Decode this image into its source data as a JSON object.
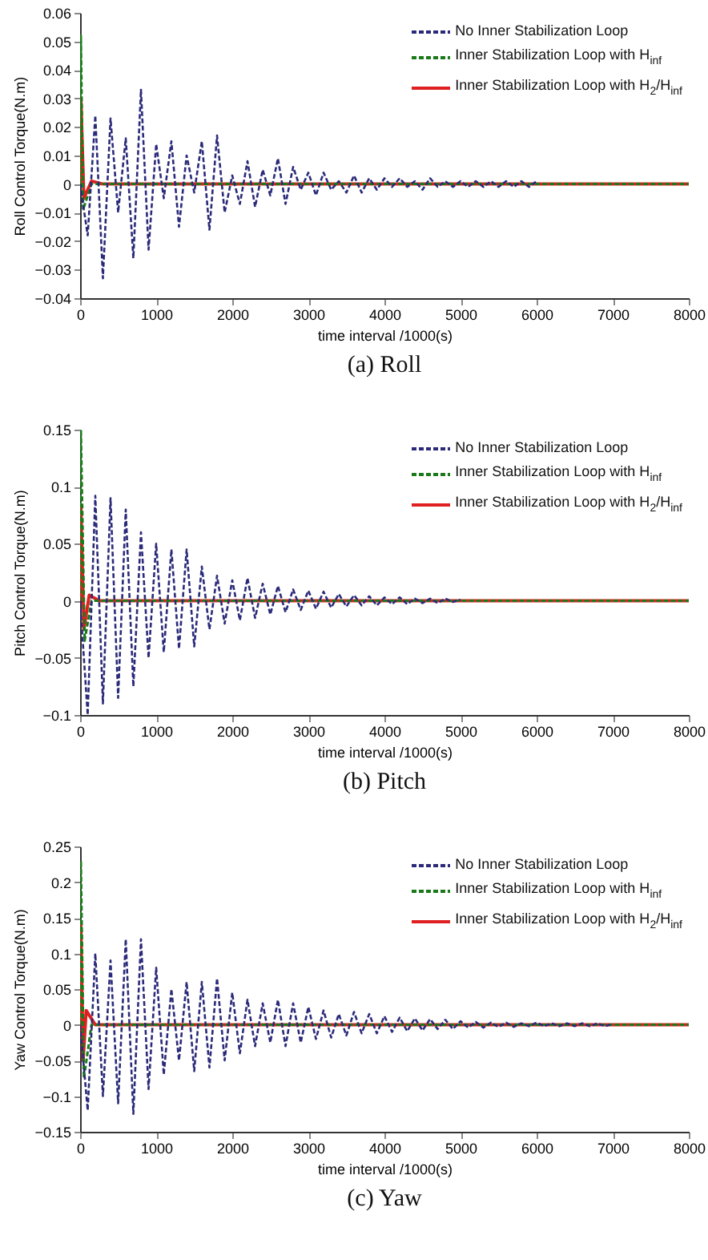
{
  "chart_data": [
    {
      "type": "line",
      "title": "(a) Roll",
      "xlabel": "time interval /1000(s)",
      "ylabel": "Roll Control Torque(N.m)",
      "xlim": [
        0,
        8000
      ],
      "xticks": [
        0,
        1000,
        2000,
        3000,
        4000,
        5000,
        6000,
        7000,
        8000
      ],
      "ylim": [
        -0.04,
        0.06
      ],
      "yticks": [
        -0.04,
        -0.03,
        -0.02,
        -0.01,
        0,
        0.01,
        0.02,
        0.03,
        0.04,
        0.05,
        0.06
      ],
      "legend": "top right",
      "series": [
        {
          "name": "No Inner Stabilization Loop",
          "color": "#2b2a7a",
          "line_style": "dashed",
          "x": [
            0,
            100,
            200,
            300,
            400,
            500,
            600,
            700,
            800,
            900,
            1000,
            1100,
            1200,
            1300,
            1400,
            1500,
            1600,
            1700,
            1800,
            1900,
            2000,
            2100,
            2200,
            2300,
            2400,
            2500,
            2600,
            2700,
            2800,
            2900,
            3000,
            3100,
            3200,
            3300,
            3400,
            3500,
            3600,
            3700,
            3800,
            3900,
            4000,
            4100,
            4200,
            4300,
            4400,
            4500,
            4600,
            4700,
            4800,
            4900,
            5000,
            5100,
            5200,
            5300,
            5400,
            5500,
            5600,
            5700,
            5800,
            5900,
            6000
          ],
          "values": [
            0,
            -0.018,
            0.024,
            -0.033,
            0.023,
            -0.01,
            0.016,
            -0.026,
            0.033,
            -0.023,
            0.014,
            -0.005,
            0.015,
            -0.015,
            0.01,
            -0.003,
            0.015,
            -0.016,
            0.017,
            -0.01,
            0.003,
            -0.007,
            0.008,
            -0.008,
            0.005,
            -0.004,
            0.009,
            -0.007,
            0.006,
            -0.002,
            0.004,
            -0.004,
            0.004,
            -0.002,
            0.001,
            -0.003,
            0.003,
            -0.003,
            0.002,
            -0.002,
            0.002,
            -0.001,
            0.002,
            -0.001,
            0.001,
            -0.002,
            0.002,
            -0.001,
            0.001,
            -0.001,
            0.001,
            -0.001,
            0.001,
            -0.001,
            0.001,
            -0.001,
            0.001,
            -0.001,
            0.001,
            -0.001,
            0.001
          ]
        },
        {
          "name": "Inner Stabilization Loop with H$_{inf}$",
          "color": "#1a7a1a",
          "line_style": "dashed",
          "x": [
            0,
            10,
            40,
            150,
            8000
          ],
          "values": [
            0,
            0.052,
            -0.009,
            0,
            0
          ]
        },
        {
          "name": "Inner Stabilization Loop with H$_{2}$/H$_{inf}$",
          "color": "#e02020",
          "line_style": "solid",
          "x": [
            0,
            10,
            50,
            150,
            300,
            8000
          ],
          "values": [
            0,
            0.03,
            -0.005,
            0.001,
            0,
            0
          ]
        }
      ]
    },
    {
      "type": "line",
      "title": "(b) Pitch",
      "xlabel": "time interval /1000(s)",
      "ylabel": "Pitch Control Torque(N.m)",
      "xlim": [
        0,
        8000
      ],
      "xticks": [
        0,
        1000,
        2000,
        3000,
        4000,
        5000,
        6000,
        7000,
        8000
      ],
      "ylim": [
        -0.1,
        0.15
      ],
      "yticks": [
        -0.1,
        -0.05,
        0,
        0.05,
        0.1,
        0.15
      ],
      "legend": "top right",
      "series": [
        {
          "name": "No Inner Stabilization Loop",
          "color": "#2b2a7a",
          "line_style": "dashed",
          "x": [
            0,
            100,
            200,
            300,
            400,
            500,
            600,
            700,
            800,
            900,
            1000,
            1100,
            1200,
            1300,
            1400,
            1500,
            1600,
            1700,
            1800,
            1900,
            2000,
            2100,
            2200,
            2300,
            2400,
            2500,
            2600,
            2700,
            2800,
            2900,
            3000,
            3100,
            3200,
            3300,
            3400,
            3500,
            3600,
            3700,
            3800,
            3900,
            4000,
            4100,
            4200,
            4300,
            4400,
            4500,
            4600,
            4700,
            4800,
            4900,
            5000
          ],
          "values": [
            0,
            -0.1,
            0.092,
            -0.09,
            0.09,
            -0.085,
            0.08,
            -0.075,
            0.06,
            -0.05,
            0.05,
            -0.045,
            0.045,
            -0.042,
            0.045,
            -0.04,
            0.03,
            -0.025,
            0.022,
            -0.02,
            0.018,
            -0.017,
            0.02,
            -0.015,
            0.015,
            -0.012,
            0.013,
            -0.01,
            0.01,
            -0.008,
            0.009,
            -0.007,
            0.008,
            -0.006,
            0.006,
            -0.005,
            0.005,
            -0.004,
            0.004,
            -0.004,
            0.003,
            -0.003,
            0.003,
            -0.003,
            0.002,
            -0.002,
            0.002,
            -0.002,
            0.002,
            -0.001,
            0.001
          ]
        },
        {
          "name": "Inner Stabilization Loop with H$_{inf}$",
          "color": "#1a7a1a",
          "line_style": "dashed",
          "x": [
            0,
            10,
            60,
            150,
            8000
          ],
          "values": [
            0,
            0.15,
            -0.035,
            0,
            0
          ]
        },
        {
          "name": "Inner Stabilization Loop with H$_{2}$/H$_{inf}$",
          "color": "#e02020",
          "line_style": "solid",
          "x": [
            0,
            10,
            50,
            120,
            250,
            8000
          ],
          "values": [
            0,
            0.083,
            -0.025,
            0.005,
            0,
            0
          ]
        }
      ]
    },
    {
      "type": "line",
      "title": "(c) Yaw",
      "xlabel": "time interval /1000(s)",
      "ylabel": "Yaw Control Torque(N.m)",
      "xlim": [
        0,
        8000
      ],
      "xticks": [
        0,
        1000,
        2000,
        3000,
        4000,
        5000,
        6000,
        7000,
        8000
      ],
      "ylim": [
        -0.15,
        0.25
      ],
      "yticks": [
        -0.15,
        -0.1,
        -0.05,
        0,
        0.05,
        0.1,
        0.15,
        0.2,
        0.25
      ],
      "legend": "top right",
      "series": [
        {
          "name": "No Inner Stabilization Loop",
          "color": "#2b2a7a",
          "line_style": "dashed",
          "x": [
            0,
            100,
            200,
            300,
            400,
            500,
            600,
            700,
            800,
            900,
            1000,
            1100,
            1200,
            1300,
            1400,
            1500,
            1600,
            1700,
            1800,
            1900,
            2000,
            2100,
            2200,
            2300,
            2400,
            2500,
            2600,
            2700,
            2800,
            2900,
            3000,
            3100,
            3200,
            3300,
            3400,
            3500,
            3600,
            3700,
            3800,
            3900,
            4000,
            4100,
            4200,
            4300,
            4400,
            4500,
            4600,
            4700,
            4800,
            4900,
            5000,
            5100,
            5200,
            5300,
            5400,
            5500,
            5600,
            5700,
            5800,
            5900,
            6000,
            6100,
            6200,
            6300,
            6400,
            6500,
            6600,
            6700,
            6800,
            6900,
            7000
          ],
          "values": [
            0,
            -0.12,
            0.1,
            -0.1,
            0.09,
            -0.11,
            0.12,
            -0.125,
            0.12,
            -0.09,
            0.08,
            -0.07,
            0.05,
            -0.05,
            0.06,
            -0.065,
            0.06,
            -0.06,
            0.065,
            -0.05,
            0.045,
            -0.04,
            0.035,
            -0.03,
            0.03,
            -0.025,
            0.035,
            -0.03,
            0.03,
            -0.025,
            0.025,
            -0.02,
            0.02,
            -0.018,
            0.015,
            -0.015,
            0.018,
            -0.012,
            0.015,
            -0.012,
            0.012,
            -0.01,
            0.01,
            -0.009,
            0.009,
            -0.008,
            0.008,
            -0.006,
            0.007,
            -0.006,
            0.005,
            -0.004,
            0.004,
            -0.004,
            0.003,
            -0.003,
            0.003,
            -0.003,
            0.002,
            -0.002,
            0.003,
            -0.002,
            0.002,
            -0.002,
            0.002,
            -0.002,
            0.002,
            -0.002,
            0.002,
            -0.002,
            0.001
          ]
        },
        {
          "name": "Inner Stabilization Loop with H$_{inf}$",
          "color": "#1a7a1a",
          "line_style": "dashed",
          "x": [
            0,
            10,
            50,
            150,
            8000
          ],
          "values": [
            0,
            0.23,
            -0.075,
            0,
            0
          ]
        },
        {
          "name": "Inner Stabilization Loop with H$_{2}$/H$_{inf}$",
          "color": "#e02020",
          "line_style": "solid",
          "x": [
            0,
            10,
            40,
            80,
            200,
            8000
          ],
          "values": [
            0,
            0.14,
            -0.05,
            0.02,
            0,
            0
          ]
        }
      ]
    }
  ]
}
